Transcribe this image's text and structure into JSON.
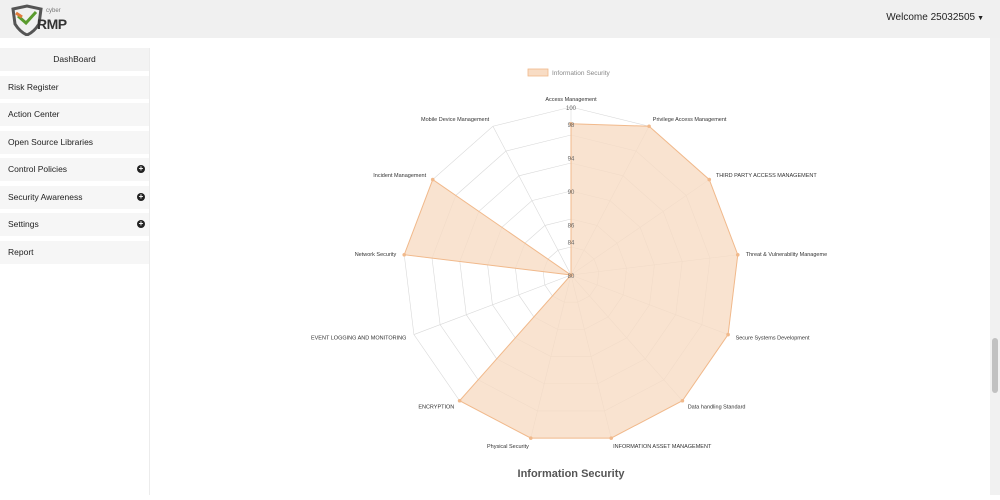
{
  "header": {
    "logo_small": "cyber",
    "logo_main": "RMP",
    "welcome": "Welcome 25032505"
  },
  "sidebar": {
    "items": [
      {
        "label": "DashBoard",
        "expandable": false
      },
      {
        "label": "Risk Register",
        "expandable": false
      },
      {
        "label": "Action Center",
        "expandable": false
      },
      {
        "label": "Open Source Libraries",
        "expandable": false
      },
      {
        "label": "Control Policies",
        "expandable": true
      },
      {
        "label": "Security Awareness",
        "expandable": true
      },
      {
        "label": "Settings",
        "expandable": true
      },
      {
        "label": "Report",
        "expandable": false
      }
    ]
  },
  "colors": {
    "fill": "#f8dcc4",
    "stroke": "#f1b98b",
    "grid": "#d9d9d9"
  },
  "chart_data": {
    "type": "radar",
    "title": "Information Security",
    "legend": [
      "Information Security"
    ],
    "legend_position": "top",
    "r_range": [
      80,
      100
    ],
    "ticks": [
      "80",
      "84",
      "86",
      "90",
      "94",
      "98",
      "100"
    ],
    "categories": [
      "Access Management",
      "Privilege Access Management",
      "THIRD PARTY ACCESS MANAGEMENT",
      "Threat & Vulnerability Manageme",
      "Secure Systems Development",
      "Data handling Standard",
      "INFORMATION ASSET MANAGEMENT",
      "Physical Security",
      "ENCRYPTION",
      "EVENT LOGGING AND MONITORING",
      "Network Security",
      "Incident Management",
      "Mobile Device Management"
    ],
    "series": [
      {
        "name": "Information Security",
        "values": [
          98,
          100,
          100,
          100,
          100,
          100,
          100,
          100,
          100,
          80,
          100,
          100,
          80
        ]
      }
    ]
  }
}
